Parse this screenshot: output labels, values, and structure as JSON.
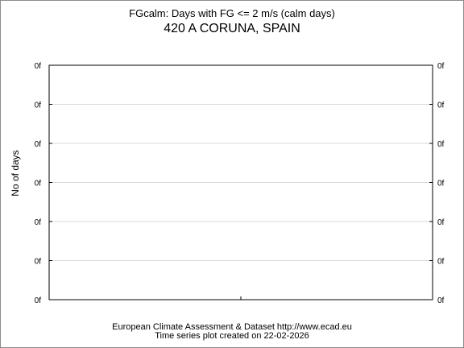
{
  "chart_data": {
    "type": "line",
    "title": "FGcalm: Days with FG <= 2 m/s (calm days)",
    "subtitle": "420 A CORUNA, SPAIN",
    "xlabel": "",
    "ylabel": "No of days",
    "y_tick_labels": [
      "0f",
      "0f",
      "0f",
      "0f",
      "0f",
      "0f",
      "0f"
    ],
    "x_tick_count": 1,
    "series": [],
    "grid": true
  },
  "footer": {
    "line1": "European Climate Assessment & Dataset  http://www.ecad.eu",
    "line2": "Time series plot created on 22-02-2026"
  }
}
